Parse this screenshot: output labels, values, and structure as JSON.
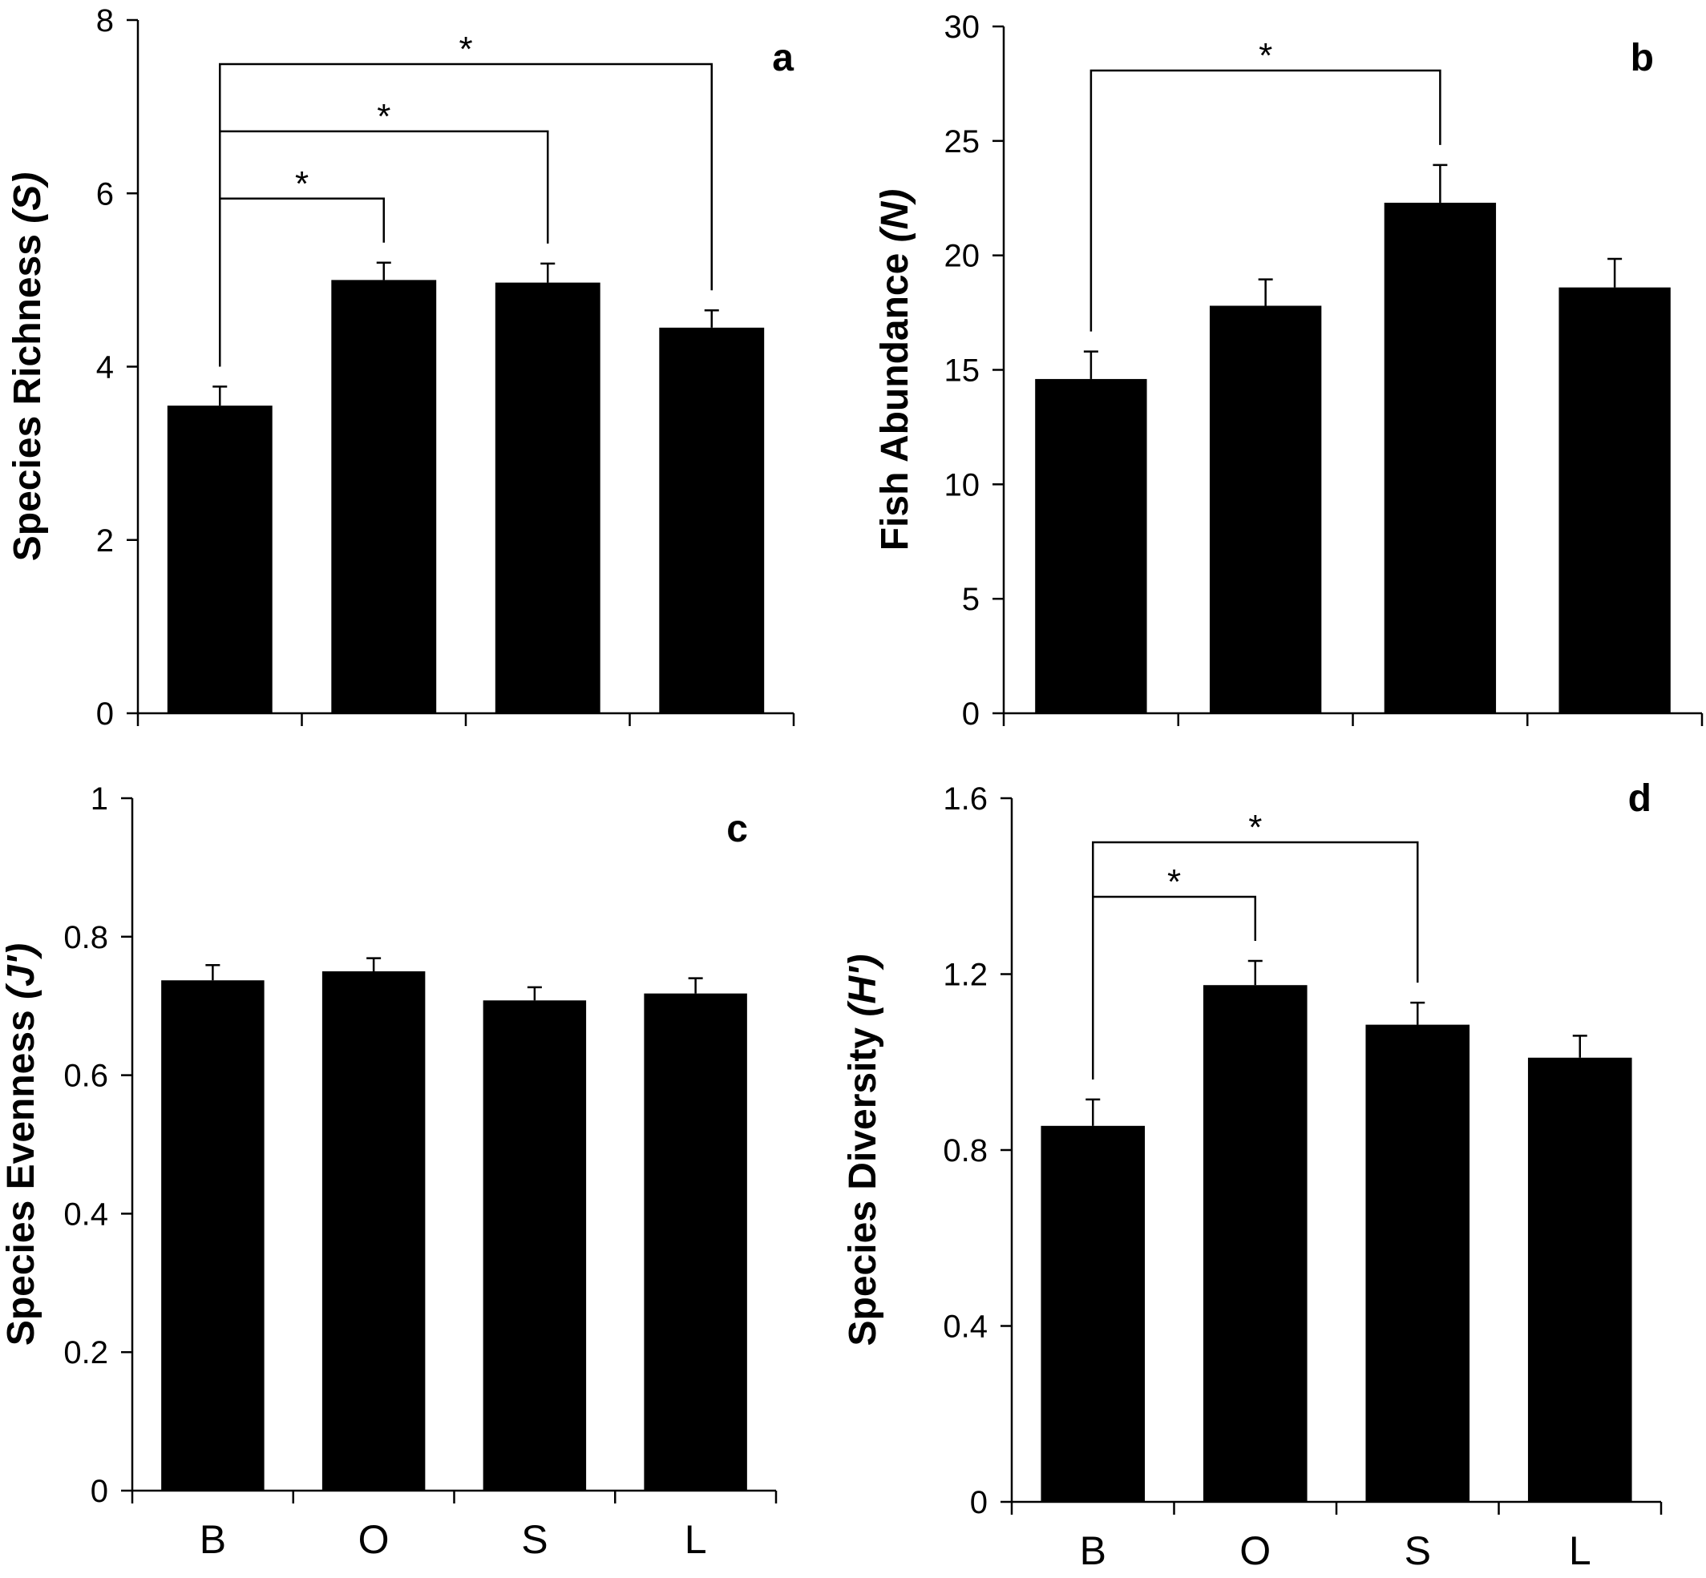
{
  "chart_data": [
    {
      "panel": "a",
      "type": "bar",
      "categories": [
        "B",
        "O",
        "S",
        "L"
      ],
      "values": [
        3.55,
        5.0,
        4.97,
        4.45
      ],
      "errors": [
        0.22,
        0.2,
        0.22,
        0.2
      ],
      "ylabel": "Species Richness",
      "ylabel_symbol": "(S)",
      "ylim": [
        0,
        8
      ],
      "yticks": [
        "0",
        "2",
        "4",
        "6",
        "8"
      ],
      "show_xlabels": false,
      "significance": [
        {
          "from": "B",
          "to": "O",
          "label": "*"
        },
        {
          "from": "B",
          "to": "S",
          "label": "*"
        },
        {
          "from": "B",
          "to": "L",
          "label": "*"
        }
      ]
    },
    {
      "panel": "b",
      "type": "bar",
      "categories": [
        "B",
        "O",
        "S",
        "L"
      ],
      "values": [
        14.6,
        17.8,
        22.3,
        18.6
      ],
      "errors": [
        1.2,
        1.15,
        1.65,
        1.25
      ],
      "ylabel": "Fish Abundance",
      "ylabel_symbol": "(N)",
      "ylim": [
        0,
        30
      ],
      "yticks": [
        "0",
        "5",
        "10",
        "15",
        "20",
        "25",
        "30"
      ],
      "show_xlabels": false,
      "significance": [
        {
          "from": "B",
          "to": "S",
          "label": "*"
        }
      ]
    },
    {
      "panel": "c",
      "type": "bar",
      "categories": [
        "B",
        "O",
        "S",
        "L"
      ],
      "values": [
        0.737,
        0.75,
        0.708,
        0.718
      ],
      "errors": [
        0.022,
        0.019,
        0.019,
        0.022
      ],
      "ylabel": "Species Evenness",
      "ylabel_symbol": "(J')",
      "ylim": [
        0,
        1
      ],
      "yticks": [
        "0",
        "0.2",
        "0.4",
        "0.6",
        "0.8",
        "1"
      ],
      "show_xlabels": true,
      "significance": []
    },
    {
      "panel": "d",
      "type": "bar",
      "categories": [
        "B",
        "O",
        "S",
        "L"
      ],
      "values": [
        0.855,
        1.175,
        1.085,
        1.01
      ],
      "errors": [
        0.06,
        0.055,
        0.05,
        0.05
      ],
      "ylabel": "Species Diversity",
      "ylabel_symbol": "(H')",
      "ylim": [
        0,
        1.6
      ],
      "yticks": [
        "0",
        "0.4",
        "0.8",
        "1.2",
        "1.6"
      ],
      "show_xlabels": true,
      "significance": [
        {
          "from": "B",
          "to": "O",
          "label": "*"
        },
        {
          "from": "B",
          "to": "S",
          "label": "*"
        }
      ]
    }
  ]
}
